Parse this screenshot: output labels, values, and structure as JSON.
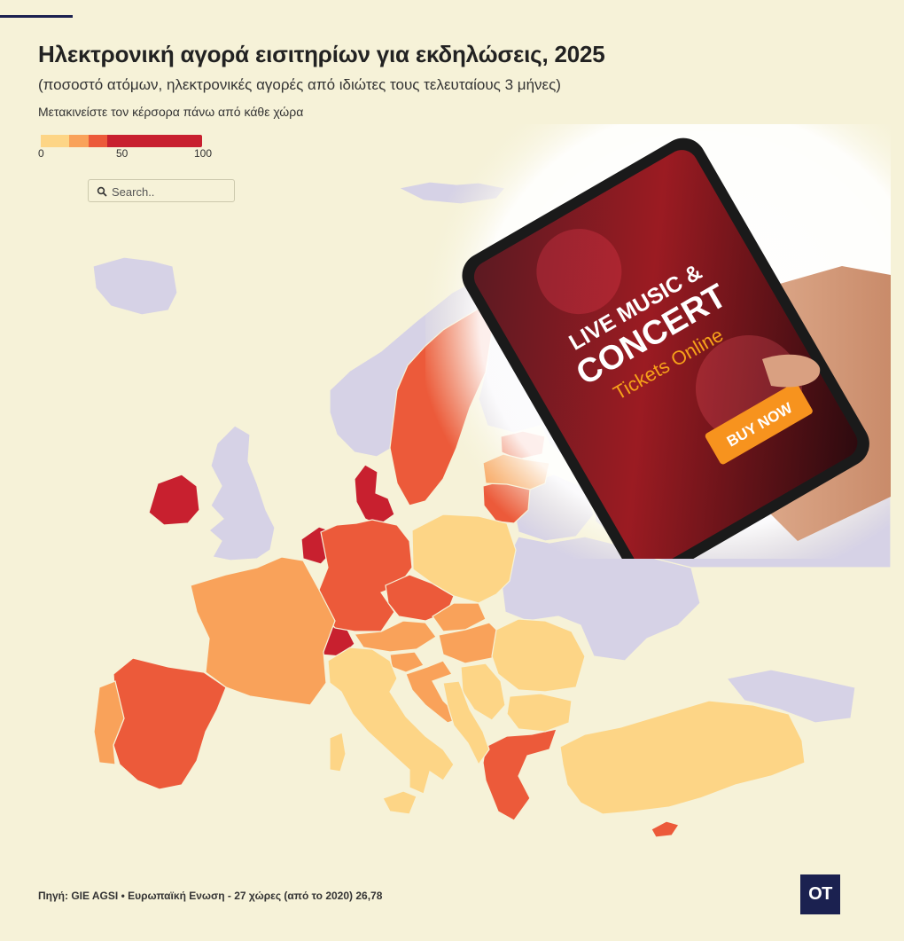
{
  "title": "Ηλεκτρονική αγορά εισιτηρίων για εκδηλώσεις, 2025",
  "subtitle": "(ποσοστό ατόμων, ηλεκτρονικές αγορές από ιδιώτες τους τελευταίους 3 μήνες)",
  "instruction": "Μετακινείστε τον κέρσορα πάνω από κάθε χώρα",
  "legend": {
    "ticks": [
      "0",
      "50",
      "100"
    ],
    "colors": [
      "#fdd586",
      "#f9a25a",
      "#ec5a3a",
      "#c8202f"
    ],
    "no_data_color": "#d6d2e6"
  },
  "search": {
    "placeholder": "Search.."
  },
  "photo": {
    "headline_1": "LIVE MUSIC &",
    "headline_2": "CONCERT",
    "headline_3": "Tickets Online",
    "button": "BUY NOW"
  },
  "source": "Πηγή: GIE AGSI • Ευρωπαϊκή Ενωση - 27 χώρες (από το 2020) 26,78",
  "logo": "OT",
  "map_classes": {
    "no_data": [
      "Iceland",
      "United Kingdom",
      "Norway",
      "Finland",
      "Belarus",
      "Ukraine",
      "Russia"
    ],
    "band_1": [
      "Poland",
      "Romania",
      "Bulgaria",
      "Italy",
      "Turkey",
      "Serbia",
      "Albania",
      "North Macedonia",
      "Bosnia and Herzegovina",
      "Montenegro"
    ],
    "band_2": [
      "France",
      "Portugal",
      "Latvia",
      "Hungary",
      "Slovakia",
      "Austria",
      "Slovenia",
      "Croatia"
    ],
    "band_3": [
      "Spain",
      "Germany",
      "Sweden",
      "Czechia",
      "Lithuania",
      "Estonia",
      "Greece",
      "Cyprus"
    ],
    "band_4": [
      "Ireland",
      "Netherlands",
      "Denmark",
      "Switzerland"
    ]
  }
}
